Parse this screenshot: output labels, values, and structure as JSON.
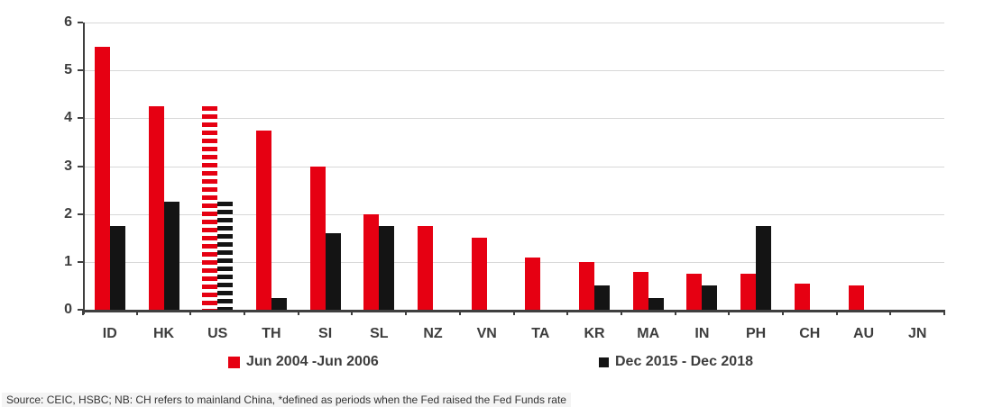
{
  "chart_data": {
    "type": "bar",
    "categories": [
      "ID",
      "HK",
      "US",
      "TH",
      "SI",
      "SL",
      "NZ",
      "VN",
      "TA",
      "KR",
      "MA",
      "IN",
      "PH",
      "CH",
      "AU",
      "JN"
    ],
    "series": [
      {
        "name": "Jun 2004 -Jun 2006",
        "color": "#e60012",
        "values": [
          5.5,
          4.25,
          4.25,
          3.75,
          3.0,
          2.0,
          1.75,
          1.5,
          1.1,
          1.0,
          0.8,
          0.75,
          0.75,
          0.55,
          0.5,
          0
        ]
      },
      {
        "name": "Dec 2015 - Dec 2018",
        "color": "#141414",
        "values": [
          1.75,
          2.25,
          2.25,
          0.25,
          1.6,
          1.75,
          0,
          0,
          0,
          0.5,
          0.25,
          0.5,
          1.75,
          0,
          0,
          0
        ]
      }
    ],
    "hatched_category": "US",
    "hatch_style": "horizontal-dashed-fill",
    "ylim": [
      0,
      6
    ],
    "yticks": [
      0,
      1,
      2,
      3,
      4,
      5,
      6
    ],
    "grid": true,
    "legend_position": "bottom",
    "title": ""
  },
  "colors": {
    "accent_red": "#e60012",
    "bar_black": "#141414",
    "axis": "#3f3f3f",
    "gridline": "#d8d8d8",
    "label_text": "#3d3d3d"
  },
  "footer": {
    "source_note": "Source: CEIC, HSBC; NB: CH refers to mainland China, *defined as periods when the Fed raised the Fed Funds rate"
  }
}
